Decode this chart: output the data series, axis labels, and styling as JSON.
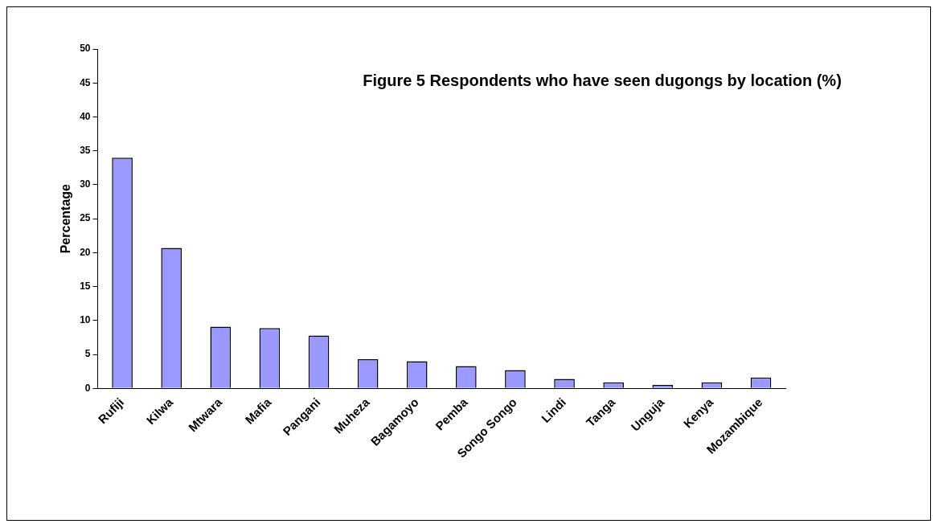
{
  "chart_data": {
    "type": "bar",
    "title": "Figure 5 Respondents who have seen dugongs by location (%)",
    "ylabel": "Percentage",
    "categories": [
      "Rufiji",
      "Kilwa",
      "Mtwara",
      "Mafia",
      "Pangani",
      "Muheza",
      "Bagamoyo",
      "Pemba",
      "Songo Songo",
      "Lindi",
      "Tanga",
      "Unguja",
      "Kenya",
      "Mozambique"
    ],
    "values": [
      34,
      20.7,
      9.1,
      8.9,
      7.8,
      4.3,
      4.0,
      3.3,
      2.7,
      1.4,
      0.9,
      0.5,
      0.9,
      1.6
    ],
    "color": "#9999ff",
    "ylim": [
      0,
      50
    ],
    "yticks": [
      0,
      5,
      10,
      15,
      20,
      25,
      30,
      35,
      40,
      45,
      50
    ],
    "grid": false,
    "legend": false
  }
}
